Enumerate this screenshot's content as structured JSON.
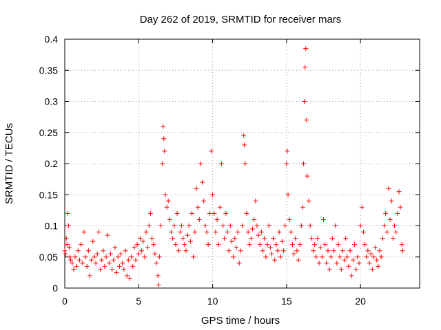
{
  "chart_data": {
    "type": "scatter",
    "title": "Day 262 of 2019, SRMTID for receiver mars",
    "xlabel": "GPS time / hours",
    "ylabel": "SRMTID / TECUs",
    "xlim": [
      0,
      24
    ],
    "ylim": [
      0,
      0.4
    ],
    "xticks": [
      0,
      5,
      10,
      15,
      20
    ],
    "xtick_labels": [
      "0",
      "5",
      "10",
      "15",
      "20"
    ],
    "yticks": [
      0,
      0.05,
      0.1,
      0.15,
      0.2,
      0.25,
      0.3,
      0.35,
      0.4
    ],
    "ytick_labels": [
      "0",
      "0.05",
      "0.1",
      "0.15",
      "0.2",
      "0.25",
      "0.3",
      "0.35",
      "0.4"
    ],
    "grid": true,
    "marker": "+",
    "color": "#ff0000",
    "series": [
      {
        "name": "SRMTID",
        "points": [
          [
            0.0,
            0.06
          ],
          [
            0.05,
            0.055
          ],
          [
            0.1,
            0.08
          ],
          [
            0.15,
            0.07
          ],
          [
            0.2,
            0.12
          ],
          [
            0.25,
            0.1
          ],
          [
            0.3,
            0.065
          ],
          [
            0.35,
            0.05
          ],
          [
            0.4,
            0.045
          ],
          [
            0.5,
            0.04
          ],
          [
            0.6,
            0.03
          ],
          [
            0.7,
            0.05
          ],
          [
            0.8,
            0.035
          ],
          [
            0.9,
            0.06
          ],
          [
            1.0,
            0.045
          ],
          [
            1.1,
            0.07
          ],
          [
            1.2,
            0.04
          ],
          [
            1.3,
            0.09
          ],
          [
            1.4,
            0.05
          ],
          [
            1.5,
            0.035
          ],
          [
            1.6,
            0.06
          ],
          [
            1.7,
            0.02
          ],
          [
            1.8,
            0.045
          ],
          [
            1.9,
            0.075
          ],
          [
            2.0,
            0.05
          ],
          [
            2.1,
            0.04
          ],
          [
            2.2,
            0.055
          ],
          [
            2.3,
            0.09
          ],
          [
            2.4,
            0.03
          ],
          [
            2.5,
            0.045
          ],
          [
            2.6,
            0.06
          ],
          [
            2.7,
            0.035
          ],
          [
            2.8,
            0.05
          ],
          [
            2.9,
            0.085
          ],
          [
            3.0,
            0.04
          ],
          [
            3.1,
            0.055
          ],
          [
            3.2,
            0.03
          ],
          [
            3.3,
            0.045
          ],
          [
            3.4,
            0.065
          ],
          [
            3.5,
            0.025
          ],
          [
            3.6,
            0.05
          ],
          [
            3.7,
            0.035
          ],
          [
            3.8,
            0.055
          ],
          [
            3.9,
            0.04
          ],
          [
            4.0,
            0.03
          ],
          [
            4.1,
            0.06
          ],
          [
            4.2,
            0.02
          ],
          [
            4.3,
            0.045
          ],
          [
            4.4,
            0.015
          ],
          [
            4.5,
            0.05
          ],
          [
            4.6,
            0.035
          ],
          [
            4.7,
            0.065
          ],
          [
            4.8,
            0.045
          ],
          [
            4.9,
            0.07
          ],
          [
            5.0,
            0.055
          ],
          [
            5.1,
            0.08
          ],
          [
            5.2,
            0.06
          ],
          [
            5.3,
            0.075
          ],
          [
            5.4,
            0.05
          ],
          [
            5.5,
            0.09
          ],
          [
            5.6,
            0.065
          ],
          [
            5.7,
            0.1
          ],
          [
            5.8,
            0.12
          ],
          [
            5.9,
            0.08
          ],
          [
            6.0,
            0.07
          ],
          [
            6.1,
            0.055
          ],
          [
            6.2,
            0.04
          ],
          [
            6.3,
            0.02
          ],
          [
            6.35,
            0.005
          ],
          [
            6.4,
            0.05
          ],
          [
            6.5,
            0.1
          ],
          [
            6.6,
            0.2
          ],
          [
            6.65,
            0.26
          ],
          [
            6.7,
            0.24
          ],
          [
            6.75,
            0.22
          ],
          [
            6.8,
            0.15
          ],
          [
            6.9,
            0.13
          ],
          [
            7.0,
            0.14
          ],
          [
            7.1,
            0.11
          ],
          [
            7.2,
            0.09
          ],
          [
            7.3,
            0.08
          ],
          [
            7.4,
            0.1
          ],
          [
            7.5,
            0.07
          ],
          [
            7.6,
            0.12
          ],
          [
            7.7,
            0.06
          ],
          [
            7.8,
            0.09
          ],
          [
            7.9,
            0.1
          ],
          [
            8.0,
            0.08
          ],
          [
            8.1,
            0.07
          ],
          [
            8.2,
            0.06
          ],
          [
            8.3,
            0.085
          ],
          [
            8.4,
            0.1
          ],
          [
            8.5,
            0.075
          ],
          [
            8.6,
            0.12
          ],
          [
            8.7,
            0.05
          ],
          [
            8.8,
            0.09
          ],
          [
            8.9,
            0.16
          ],
          [
            9.0,
            0.13
          ],
          [
            9.1,
            0.11
          ],
          [
            9.2,
            0.2
          ],
          [
            9.3,
            0.17
          ],
          [
            9.4,
            0.14
          ],
          [
            9.5,
            0.1
          ],
          [
            9.6,
            0.09
          ],
          [
            9.7,
            0.07
          ],
          [
            9.8,
            0.12
          ],
          [
            9.9,
            0.22
          ],
          [
            10.0,
            0.15
          ],
          [
            10.1,
            0.12
          ],
          [
            10.2,
            0.09
          ],
          [
            10.3,
            0.11
          ],
          [
            10.4,
            0.07
          ],
          [
            10.5,
            0.13
          ],
          [
            10.6,
            0.2
          ],
          [
            10.7,
            0.1
          ],
          [
            10.8,
            0.08
          ],
          [
            10.9,
            0.12
          ],
          [
            11.0,
            0.09
          ],
          [
            11.1,
            0.06
          ],
          [
            11.2,
            0.1
          ],
          [
            11.3,
            0.075
          ],
          [
            11.4,
            0.05
          ],
          [
            11.5,
            0.08
          ],
          [
            11.6,
            0.065
          ],
          [
            11.7,
            0.09
          ],
          [
            11.8,
            0.04
          ],
          [
            11.9,
            0.06
          ],
          [
            12.0,
            0.1
          ],
          [
            12.1,
            0.245
          ],
          [
            12.15,
            0.23
          ],
          [
            12.2,
            0.2
          ],
          [
            12.3,
            0.12
          ],
          [
            12.4,
            0.09
          ],
          [
            12.5,
            0.07
          ],
          [
            12.6,
            0.08
          ],
          [
            12.7,
            0.095
          ],
          [
            12.8,
            0.11
          ],
          [
            12.9,
            0.14
          ],
          [
            13.0,
            0.1
          ],
          [
            13.1,
            0.085
          ],
          [
            13.2,
            0.07
          ],
          [
            13.3,
            0.09
          ],
          [
            13.4,
            0.06
          ],
          [
            13.5,
            0.08
          ],
          [
            13.6,
            0.05
          ],
          [
            13.7,
            0.07
          ],
          [
            13.8,
            0.1
          ],
          [
            13.9,
            0.065
          ],
          [
            14.0,
            0.055
          ],
          [
            14.1,
            0.08
          ],
          [
            14.2,
            0.045
          ],
          [
            14.3,
            0.07
          ],
          [
            14.4,
            0.06
          ],
          [
            14.5,
            0.09
          ],
          [
            14.6,
            0.05
          ],
          [
            14.7,
            0.075
          ],
          [
            14.8,
            0.06
          ],
          [
            14.9,
            0.1
          ],
          [
            15.0,
            0.2
          ],
          [
            15.05,
            0.22
          ],
          [
            15.1,
            0.15
          ],
          [
            15.2,
            0.11
          ],
          [
            15.3,
            0.09
          ],
          [
            15.4,
            0.07
          ],
          [
            15.5,
            0.055
          ],
          [
            15.6,
            0.08
          ],
          [
            15.7,
            0.06
          ],
          [
            15.8,
            0.045
          ],
          [
            15.9,
            0.07
          ],
          [
            16.0,
            0.1
          ],
          [
            16.1,
            0.13
          ],
          [
            16.15,
            0.2
          ],
          [
            16.2,
            0.3
          ],
          [
            16.25,
            0.355
          ],
          [
            16.3,
            0.385
          ],
          [
            16.35,
            0.27
          ],
          [
            16.4,
            0.18
          ],
          [
            16.5,
            0.14
          ],
          [
            16.6,
            0.1
          ],
          [
            16.7,
            0.08
          ],
          [
            16.8,
            0.06
          ],
          [
            16.9,
            0.07
          ],
          [
            17.0,
            0.05
          ],
          [
            17.1,
            0.08
          ],
          [
            17.2,
            0.04
          ],
          [
            17.3,
            0.065
          ],
          [
            17.4,
            0.05
          ],
          [
            17.5,
            0.11
          ],
          [
            17.6,
            0.07
          ],
          [
            17.7,
            0.04
          ],
          [
            17.8,
            0.06
          ],
          [
            17.9,
            0.03
          ],
          [
            18.0,
            0.05
          ],
          [
            18.1,
            0.08
          ],
          [
            18.2,
            0.06
          ],
          [
            18.3,
            0.1
          ],
          [
            18.4,
            0.04
          ],
          [
            18.5,
            0.07
          ],
          [
            18.6,
            0.05
          ],
          [
            18.7,
            0.03
          ],
          [
            18.8,
            0.06
          ],
          [
            18.9,
            0.045
          ],
          [
            19.0,
            0.08
          ],
          [
            19.1,
            0.05
          ],
          [
            19.2,
            0.035
          ],
          [
            19.3,
            0.06
          ],
          [
            19.4,
            0.02
          ],
          [
            19.5,
            0.045
          ],
          [
            19.6,
            0.07
          ],
          [
            19.7,
            0.03
          ],
          [
            19.8,
            0.05
          ],
          [
            19.9,
            0.04
          ],
          [
            20.0,
            0.1
          ],
          [
            20.1,
            0.13
          ],
          [
            20.2,
            0.09
          ],
          [
            20.3,
            0.07
          ],
          [
            20.4,
            0.05
          ],
          [
            20.5,
            0.06
          ],
          [
            20.6,
            0.04
          ],
          [
            20.7,
            0.055
          ],
          [
            20.8,
            0.03
          ],
          [
            20.9,
            0.05
          ],
          [
            21.0,
            0.065
          ],
          [
            21.1,
            0.045
          ],
          [
            21.2,
            0.035
          ],
          [
            21.3,
            0.06
          ],
          [
            21.4,
            0.05
          ],
          [
            21.5,
            0.08
          ],
          [
            21.6,
            0.1
          ],
          [
            21.7,
            0.12
          ],
          [
            21.8,
            0.09
          ],
          [
            21.9,
            0.16
          ],
          [
            22.0,
            0.11
          ],
          [
            22.1,
            0.14
          ],
          [
            22.2,
            0.08
          ],
          [
            22.3,
            0.1
          ],
          [
            22.4,
            0.09
          ],
          [
            22.5,
            0.12
          ],
          [
            22.6,
            0.155
          ],
          [
            22.7,
            0.13
          ],
          [
            22.8,
            0.07
          ],
          [
            22.85,
            0.06
          ]
        ]
      }
    ]
  }
}
